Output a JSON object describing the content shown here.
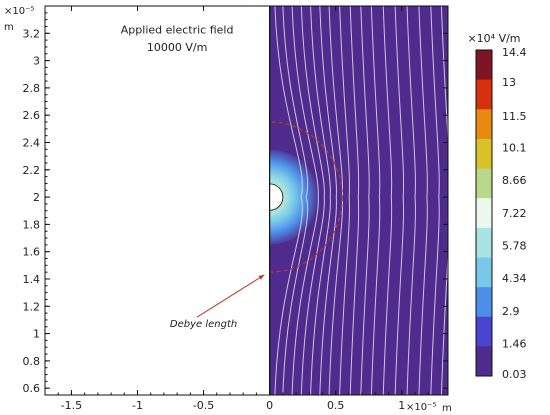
{
  "chart_data": {
    "type": "heatmap",
    "title": "",
    "xlabel": "m",
    "ylabel": "m",
    "x_multiplier": "×10⁻⁵",
    "y_multiplier": "×10⁻⁵",
    "xlim": [
      -1.7,
      1.35
    ],
    "ylim": [
      0.55,
      3.4
    ],
    "x_ticks": [
      "-1.5",
      "-1",
      "-0.5",
      "0",
      "0.5",
      "1"
    ],
    "x_tick_values": [
      -1.5,
      -1,
      -0.5,
      0,
      0.5,
      1
    ],
    "y_ticks": [
      "0.6",
      "0.8",
      "1",
      "1.2",
      "1.4",
      "1.6",
      "1.8",
      "2",
      "2.2",
      "2.4",
      "2.6",
      "2.8",
      "3",
      "3.2"
    ],
    "y_tick_values": [
      0.6,
      0.8,
      1.0,
      1.2,
      1.4,
      1.6,
      1.8,
      2.0,
      2.2,
      2.4,
      2.6,
      2.8,
      3.0,
      3.2
    ],
    "particle": {
      "center": [
        0,
        2.0
      ],
      "radius": 0.1
    },
    "debye_circle": {
      "center": [
        0,
        2.0
      ],
      "radius": 0.55,
      "color": "#c0392b"
    },
    "field_lines_x": [
      0.04,
      0.1,
      0.17,
      0.24,
      0.31,
      0.38,
      0.45,
      0.53,
      0.61,
      0.69,
      0.77,
      0.86,
      0.95,
      1.04,
      1.13,
      1.22,
      1.3
    ],
    "annotations": [
      {
        "text": "Applied electric field",
        "at": [
          -0.7,
          3.2
        ]
      },
      {
        "text": "10000 V/m",
        "at": [
          -0.7,
          3.07
        ]
      },
      {
        "text": "Debye length",
        "at": [
          -0.5,
          1.05
        ],
        "color": "#c0392b"
      }
    ],
    "colorbar": {
      "unit_label": "×10⁴ V/m",
      "ticks": [
        "14.4",
        "13",
        "11.5",
        "10.1",
        "8.66",
        "7.22",
        "5.78",
        "4.34",
        "2.9",
        "1.46",
        "0.03"
      ],
      "tick_values": [
        14.4,
        13,
        11.5,
        10.1,
        8.66,
        7.22,
        5.78,
        4.34,
        2.9,
        1.46,
        0.03
      ],
      "range": [
        0.03,
        14.4
      ],
      "colors": [
        "#7e1525",
        "#d6300f",
        "#e88a10",
        "#d9c12a",
        "#b8d98c",
        "#eef7ee",
        "#a9e3e2",
        "#79c8ea",
        "#4d8ee8",
        "#4a44cf",
        "#4e2b8c"
      ]
    }
  }
}
